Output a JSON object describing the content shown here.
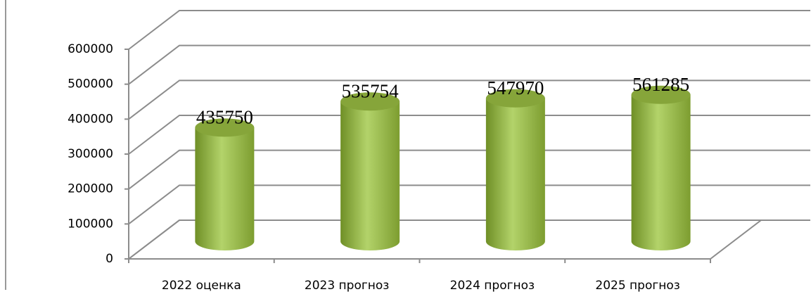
{
  "chart_data": {
    "type": "bar",
    "categories": [
      "2022 оценка",
      "2023 прогноз",
      "2024 прогноз",
      "2025 прогноз"
    ],
    "values": [
      435750,
      535754,
      547970,
      561285
    ],
    "color": "#9bbb59",
    "ylim": [
      0,
      600000
    ],
    "yticks": [
      0,
      100000,
      200000,
      300000,
      400000,
      500000,
      600000
    ],
    "grid": true
  }
}
